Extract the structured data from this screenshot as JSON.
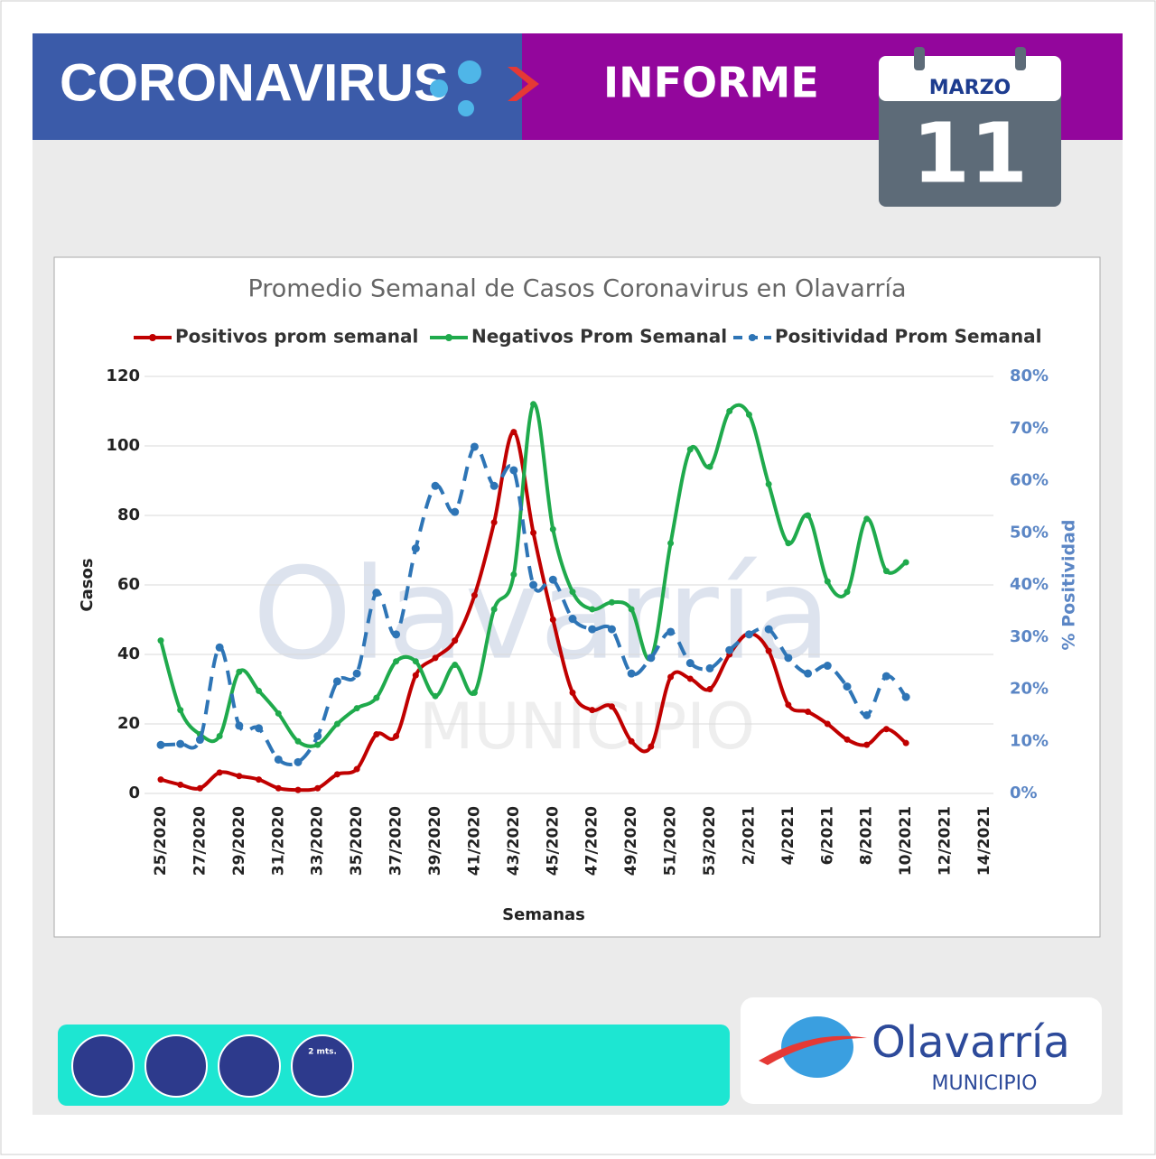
{
  "header": {
    "title": "CORONAVIRUS",
    "subtitle": "INFORME",
    "month": "MARZO",
    "day": "11"
  },
  "footer": {
    "logo_name": "Olavarría",
    "logo_sub": "MUNICIPIO",
    "distance": "2 mts."
  },
  "watermark": {
    "name": "Olavarría",
    "sub": "MUNICIPIO"
  },
  "chart_data": {
    "type": "line",
    "title": "Promedio Semanal de Casos Coronavirus en Olavarría",
    "x_label": "Semanas",
    "y_label": "Casos",
    "y2_label": "% Positividad",
    "categories": [
      "25/2020",
      null,
      "27/2020",
      null,
      "29/2020",
      null,
      "31/2020",
      null,
      "33/2020",
      null,
      "35/2020",
      null,
      "37/2020",
      null,
      "39/2020",
      null,
      "41/2020",
      null,
      "43/2020",
      null,
      "45/2020",
      null,
      "47/2020",
      null,
      "49/2020",
      null,
      "51/2020",
      null,
      "53/2020",
      null,
      "2/2021",
      null,
      "4/2021",
      null,
      "6/2021",
      null,
      "8/2021",
      null,
      "10/2021",
      null,
      "12/2021",
      null,
      "14/2021"
    ],
    "ylim": [
      0,
      120
    ],
    "yticks": [
      0,
      20,
      40,
      60,
      80,
      100,
      120
    ],
    "y2lim": [
      0,
      80
    ],
    "y2ticks": [
      {
        "value": 0,
        "label": "0%"
      },
      {
        "value": 10,
        "label": "10%"
      },
      {
        "value": 20,
        "label": "20%"
      },
      {
        "value": 30,
        "label": "30%"
      },
      {
        "value": 40,
        "label": "40%"
      },
      {
        "value": 50,
        "label": "50%"
      },
      {
        "value": 60,
        "label": "60%"
      },
      {
        "value": 70,
        "label": "70%"
      },
      {
        "value": 80,
        "label": "80%"
      }
    ],
    "grid": true,
    "legend": "top",
    "series": [
      {
        "name": "Positivos prom semanal",
        "color": "#c00000",
        "values": [
          4,
          2.5,
          1.5,
          6,
          5,
          4,
          1.5,
          1,
          1.5,
          5.5,
          7,
          17,
          16.5,
          34,
          39,
          44,
          57,
          78,
          104,
          75,
          50,
          29,
          24,
          25,
          15,
          13.5,
          33.5,
          33,
          30,
          40,
          46,
          41,
          25.5,
          23.5,
          20,
          15.5,
          14,
          18.5,
          14.5,
          null,
          null,
          null,
          null
        ]
      },
      {
        "name": "Negativos Prom Semanal",
        "color": "#1faa4c",
        "values": [
          44,
          24,
          17,
          16.5,
          35,
          29.5,
          23,
          15,
          14,
          20,
          24.5,
          27.5,
          38,
          38,
          28,
          37,
          29,
          53,
          63,
          112,
          76,
          58,
          53,
          55,
          53,
          39,
          72,
          99,
          94,
          110,
          109,
          89,
          72,
          80,
          61,
          58,
          79,
          64,
          66.5,
          null,
          null,
          null,
          null
        ]
      },
      {
        "name": "Positividad Prom Semanal",
        "color": "#2e75b6",
        "axis": "y2",
        "dashed": true,
        "values": [
          9.3,
          9.5,
          10.3,
          28,
          13,
          12.5,
          6.5,
          6,
          11,
          21.5,
          23,
          38.5,
          30.5,
          47,
          59,
          54,
          66.5,
          59,
          62,
          40,
          41,
          33.5,
          31.5,
          31.5,
          23,
          26,
          31,
          25,
          24,
          27.5,
          30.5,
          31.5,
          26,
          23,
          24.5,
          20.5,
          15,
          22.5,
          18.5,
          null,
          null,
          null,
          null
        ]
      }
    ]
  }
}
